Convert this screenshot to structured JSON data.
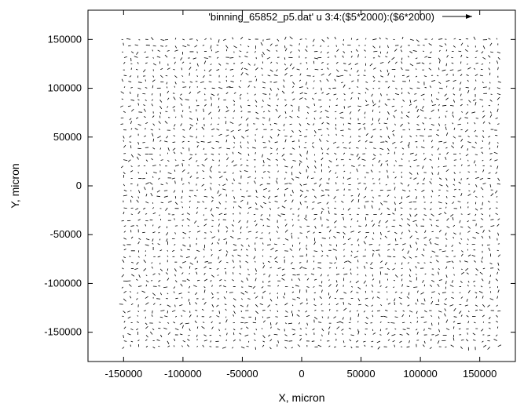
{
  "chart_data": {
    "type": "vector-field",
    "xlabel": "X, micron",
    "ylabel": "Y, micron",
    "xlim": [
      -180000,
      180000
    ],
    "ylim": [
      -180000,
      180000
    ],
    "x_ticks": [
      -150000,
      -100000,
      -50000,
      0,
      50000,
      100000,
      150000
    ],
    "y_ticks": [
      -150000,
      -100000,
      -50000,
      0,
      50000,
      100000,
      150000
    ],
    "x_tick_labels": [
      "-150000",
      "-100000",
      "-50000",
      "0",
      "50000",
      "100000",
      "150000"
    ],
    "y_tick_labels": [
      "-150000",
      "-100000",
      "-50000",
      "0",
      "50000",
      "100000",
      "150000"
    ],
    "series": [
      {
        "name": "'binning_65852_p5.dat' u 3:4:($5*2000):($6*2000)",
        "grid": {
          "x_start": -150000,
          "x_end": 165000,
          "x_count": 52,
          "y_start": -165000,
          "y_end": 150000,
          "y_count": 52
        },
        "vector_length_approx": 2500,
        "color": "#000000"
      }
    ],
    "grid_lines": false,
    "legend_position": "top-right"
  }
}
